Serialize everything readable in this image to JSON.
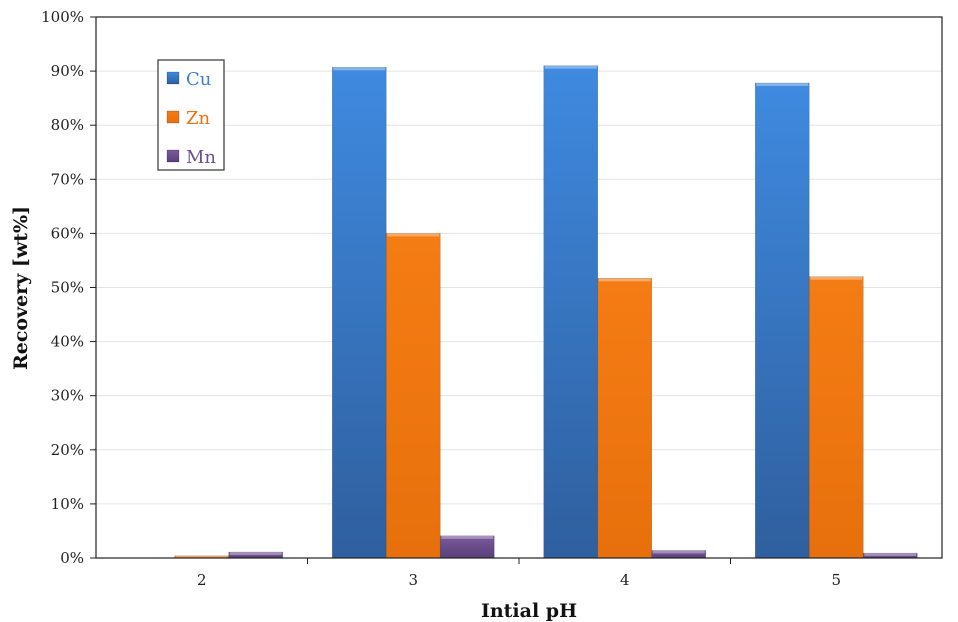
{
  "chart_data": {
    "type": "bar",
    "title": "",
    "xlabel": "Intial pH",
    "ylabel": "Recovery [wt%]",
    "categories": [
      "2",
      "3",
      "4",
      "5"
    ],
    "series": [
      {
        "name": "Cu",
        "values": [
          0,
          90.7,
          91.0,
          87.8
        ],
        "color": "#3d7fcf"
      },
      {
        "name": "Zn",
        "values": [
          0.4,
          60.0,
          51.7,
          52.0
        ],
        "color": "#ee720e"
      },
      {
        "name": "Mn",
        "values": [
          1.1,
          4.1,
          1.4,
          0.9
        ],
        "color": "#6c4f8c"
      }
    ],
    "ylim": [
      0,
      100
    ],
    "yticks": [
      "0%",
      "10%",
      "20%",
      "30%",
      "40%",
      "50%",
      "60%",
      "70%",
      "80%",
      "90%",
      "100%"
    ],
    "grid": true,
    "legend": "top-left"
  }
}
